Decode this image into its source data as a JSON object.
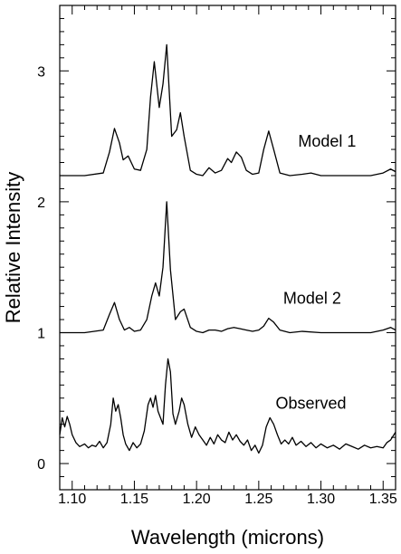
{
  "chart_data": {
    "type": "line",
    "title": "",
    "xlabel": "Wavelength (microns)",
    "ylabel": "Relative Intensity",
    "xlim": [
      1.09,
      1.36
    ],
    "ylim": [
      -0.2,
      3.5
    ],
    "x_ticks": [
      1.1,
      1.15,
      1.2,
      1.25,
      1.3,
      1.35
    ],
    "x_tick_labels": [
      "1.10",
      "1.15",
      "1.20",
      "1.25",
      "1.30",
      "1.35"
    ],
    "y_ticks": [
      0,
      1,
      2,
      3
    ],
    "y_tick_labels": [
      "0",
      "1",
      "2",
      "3"
    ],
    "grid": false,
    "legend": "none",
    "series": [
      {
        "name": "Model 1",
        "label_at": {
          "x": 1.305,
          "y": 2.42
        },
        "x": [
          1.09,
          1.11,
          1.125,
          1.13,
          1.134,
          1.138,
          1.141,
          1.145,
          1.15,
          1.155,
          1.16,
          1.163,
          1.166,
          1.17,
          1.173,
          1.176,
          1.18,
          1.184,
          1.187,
          1.19,
          1.195,
          1.2,
          1.205,
          1.21,
          1.215,
          1.22,
          1.225,
          1.228,
          1.232,
          1.236,
          1.24,
          1.245,
          1.25,
          1.254,
          1.258,
          1.262,
          1.267,
          1.275,
          1.285,
          1.292,
          1.3,
          1.32,
          1.34,
          1.35,
          1.356,
          1.36
        ],
        "values": [
          2.2,
          2.2,
          2.22,
          2.38,
          2.56,
          2.45,
          2.32,
          2.35,
          2.25,
          2.24,
          2.4,
          2.8,
          3.07,
          2.72,
          2.9,
          3.2,
          2.5,
          2.55,
          2.68,
          2.5,
          2.24,
          2.21,
          2.2,
          2.26,
          2.22,
          2.24,
          2.33,
          2.3,
          2.38,
          2.34,
          2.24,
          2.21,
          2.22,
          2.4,
          2.54,
          2.4,
          2.22,
          2.2,
          2.21,
          2.22,
          2.2,
          2.2,
          2.2,
          2.22,
          2.25,
          2.23
        ]
      },
      {
        "name": "Model 2",
        "label_at": {
          "x": 1.293,
          "y": 1.22
        },
        "x": [
          1.09,
          1.11,
          1.125,
          1.13,
          1.134,
          1.138,
          1.142,
          1.146,
          1.15,
          1.155,
          1.16,
          1.164,
          1.167,
          1.17,
          1.173,
          1.176,
          1.179,
          1.183,
          1.187,
          1.19,
          1.195,
          1.2,
          1.205,
          1.21,
          1.215,
          1.22,
          1.225,
          1.23,
          1.235,
          1.24,
          1.245,
          1.25,
          1.254,
          1.258,
          1.262,
          1.267,
          1.275,
          1.285,
          1.3,
          1.32,
          1.34,
          1.35,
          1.356,
          1.36
        ],
        "values": [
          1.0,
          1.0,
          1.02,
          1.14,
          1.23,
          1.1,
          1.02,
          1.04,
          1.01,
          1.02,
          1.1,
          1.28,
          1.38,
          1.28,
          1.5,
          2.0,
          1.48,
          1.1,
          1.16,
          1.18,
          1.04,
          1.01,
          1.0,
          1.02,
          1.02,
          1.01,
          1.03,
          1.04,
          1.03,
          1.02,
          1.01,
          1.02,
          1.05,
          1.11,
          1.08,
          1.02,
          1.0,
          1.01,
          1.0,
          1.0,
          1.0,
          1.02,
          1.04,
          1.02
        ]
      },
      {
        "name": "Observed",
        "label_at": {
          "x": 1.292,
          "y": 0.42
        },
        "x": [
          1.09,
          1.092,
          1.094,
          1.096,
          1.098,
          1.1,
          1.103,
          1.106,
          1.11,
          1.113,
          1.116,
          1.119,
          1.122,
          1.125,
          1.128,
          1.131,
          1.133,
          1.135,
          1.137,
          1.139,
          1.141,
          1.143,
          1.146,
          1.149,
          1.152,
          1.155,
          1.158,
          1.161,
          1.163,
          1.165,
          1.167,
          1.169,
          1.171,
          1.173,
          1.175,
          1.177,
          1.179,
          1.181,
          1.183,
          1.186,
          1.188,
          1.19,
          1.193,
          1.196,
          1.199,
          1.202,
          1.205,
          1.208,
          1.211,
          1.214,
          1.217,
          1.22,
          1.223,
          1.226,
          1.229,
          1.232,
          1.235,
          1.238,
          1.241,
          1.244,
          1.247,
          1.25,
          1.253,
          1.256,
          1.259,
          1.262,
          1.265,
          1.268,
          1.271,
          1.274,
          1.277,
          1.28,
          1.284,
          1.288,
          1.292,
          1.296,
          1.3,
          1.305,
          1.31,
          1.315,
          1.32,
          1.325,
          1.33,
          1.335,
          1.34,
          1.345,
          1.35,
          1.353,
          1.356,
          1.36
        ],
        "values": [
          0.22,
          0.35,
          0.28,
          0.36,
          0.3,
          0.22,
          0.16,
          0.13,
          0.15,
          0.12,
          0.14,
          0.13,
          0.17,
          0.12,
          0.16,
          0.3,
          0.5,
          0.4,
          0.45,
          0.35,
          0.22,
          0.15,
          0.1,
          0.16,
          0.12,
          0.15,
          0.25,
          0.45,
          0.5,
          0.43,
          0.52,
          0.4,
          0.35,
          0.3,
          0.6,
          0.8,
          0.7,
          0.38,
          0.3,
          0.4,
          0.5,
          0.45,
          0.3,
          0.2,
          0.28,
          0.22,
          0.18,
          0.14,
          0.2,
          0.15,
          0.22,
          0.18,
          0.16,
          0.24,
          0.18,
          0.22,
          0.17,
          0.14,
          0.18,
          0.1,
          0.14,
          0.08,
          0.14,
          0.28,
          0.35,
          0.3,
          0.22,
          0.15,
          0.18,
          0.15,
          0.2,
          0.14,
          0.17,
          0.13,
          0.16,
          0.12,
          0.15,
          0.12,
          0.14,
          0.11,
          0.15,
          0.13,
          0.11,
          0.14,
          0.12,
          0.13,
          0.12,
          0.16,
          0.18,
          0.24
        ]
      }
    ]
  }
}
